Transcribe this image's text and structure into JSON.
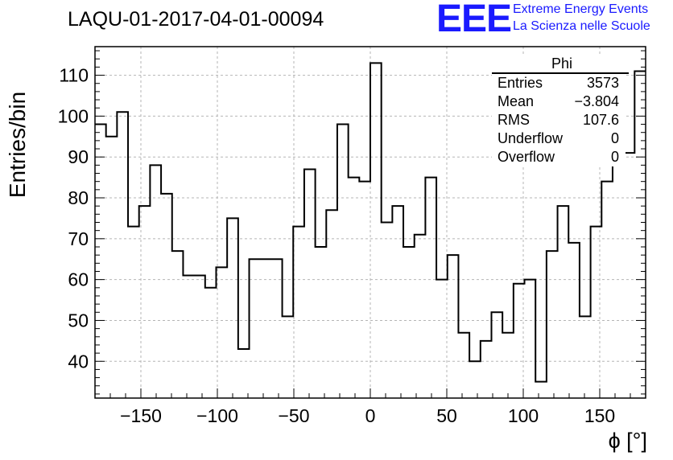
{
  "chart_data": {
    "type": "histogram",
    "title": "LAQU-01-2017-04-01-00094",
    "xlabel": "ϕ [°]",
    "ylabel": "Entries/bin",
    "xlim": [
      -180,
      180
    ],
    "ylim": [
      31,
      117
    ],
    "grid": true,
    "bin_width": 7.2,
    "x_ticks": [
      -150,
      -100,
      -50,
      0,
      50,
      100,
      150
    ],
    "x_tick_labels": [
      "−150",
      "−100",
      "−50",
      "0",
      "50",
      "100",
      "150"
    ],
    "y_ticks": [
      40,
      50,
      60,
      70,
      80,
      90,
      100,
      110
    ],
    "y_tick_labels": [
      "40",
      "50",
      "60",
      "70",
      "80",
      "90",
      "100",
      "110"
    ],
    "values": [
      98,
      95,
      101,
      73,
      78,
      88,
      81,
      67,
      61,
      61,
      58,
      63,
      75,
      43,
      65,
      65,
      65,
      51,
      73,
      87,
      68,
      77,
      98,
      85,
      84,
      113,
      74,
      78,
      68,
      71,
      85,
      60,
      66,
      47,
      40,
      45,
      52,
      47,
      59,
      60,
      35,
      67,
      78,
      69,
      51,
      73,
      84,
      89,
      91,
      111
    ],
    "stats_box": {
      "title": "Phi",
      "rows": [
        {
          "label": "Entries",
          "value": "3573"
        },
        {
          "label": "Mean",
          "value": "−3.804"
        },
        {
          "label": "RMS",
          "value": "107.6"
        },
        {
          "label": "Underflow",
          "value": "0"
        },
        {
          "label": "Overflow",
          "value": "0"
        }
      ]
    }
  },
  "logo": {
    "mark": "EEE",
    "line1": "Extreme Energy Events",
    "line2": "La Scienza nelle Scuole"
  }
}
